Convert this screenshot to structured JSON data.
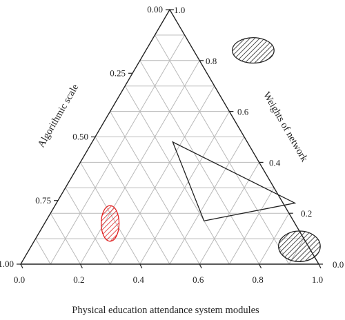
{
  "chart_data": {
    "type": "scatter",
    "subtype": "ternary",
    "title": "",
    "axes": {
      "bottom": {
        "label": "Physical education attendance system modules",
        "ticks": [
          "0.0",
          "0.2",
          "0.4",
          "0.6",
          "0.8",
          "1.0"
        ]
      },
      "left": {
        "label": "Algorithmic scale",
        "ticks": [
          "0.00",
          "0.25",
          "0.50",
          "0.75",
          "1.00"
        ]
      },
      "right": {
        "label": "Weights of network",
        "ticks": [
          "0.0",
          "0.2",
          "0.4",
          "0.6",
          "0.8",
          "1.0"
        ]
      }
    },
    "grid": true,
    "grid_step": 0.1,
    "polygon": {
      "color": "#222222",
      "vertices": [
        {
          "modules": 0.27,
          "weights": 0.48
        },
        {
          "modules": 0.8,
          "weights": 0.24
        },
        {
          "modules": 0.53,
          "weights": 0.17
        }
      ]
    },
    "regions": [
      {
        "color": "#222222",
        "fill": "hatched",
        "center": {
          "modules": 0.36,
          "weights": 0.84
        },
        "rx": 0.07,
        "ry": 0.05
      },
      {
        "color": "#222222",
        "fill": "hatched",
        "center": {
          "modules": 0.9,
          "weights": 0.07
        },
        "rx": 0.07,
        "ry": 0.06
      },
      {
        "color": "#e02020",
        "fill": "hatched",
        "center": {
          "modules": 0.22,
          "weights": 0.16
        },
        "rx": 0.03,
        "ry": 0.07
      }
    ]
  }
}
